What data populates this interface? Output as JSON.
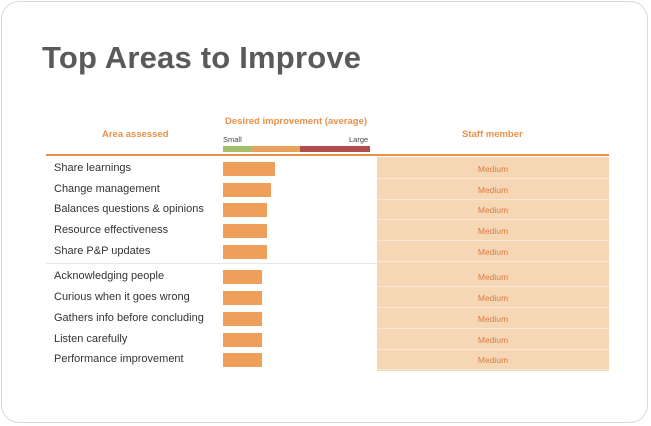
{
  "title": "Top Areas to Improve",
  "headers": {
    "area": "Area assessed",
    "desired": "Desired improvement (average)",
    "staff": "Staff member"
  },
  "scale": {
    "small": "Small",
    "large": "Large",
    "colors": [
      "#a3bf6a",
      "#e8a25c",
      "#b04e4e"
    ]
  },
  "colors": {
    "accent": "#e8914a",
    "bar": "#eea05a",
    "staff_bg": "#f5d6b5",
    "title": "#5a5a5a"
  },
  "rows": [
    {
      "label": "Share learnings",
      "level": 0.4,
      "staff": "Medium"
    },
    {
      "label": "Change management",
      "level": 0.37,
      "staff": "Medium"
    },
    {
      "label": "Balances questions & opinions",
      "level": 0.34,
      "staff": "Medium"
    },
    {
      "label": "Resource effectiveness",
      "level": 0.34,
      "staff": "Medium"
    },
    {
      "label": "Share P&P updates",
      "level": 0.34,
      "staff": "Medium"
    },
    {
      "label": "Acknowledging people",
      "level": 0.3,
      "staff": "Medium"
    },
    {
      "label": "Curious when it goes wrong",
      "level": 0.3,
      "staff": "Medium"
    },
    {
      "label": "Gathers info before concluding",
      "level": 0.3,
      "staff": "Medium"
    },
    {
      "label": "Listen carefully",
      "level": 0.3,
      "staff": "Medium"
    },
    {
      "label": "Performance improvement",
      "level": 0.3,
      "staff": "Medium"
    }
  ]
}
